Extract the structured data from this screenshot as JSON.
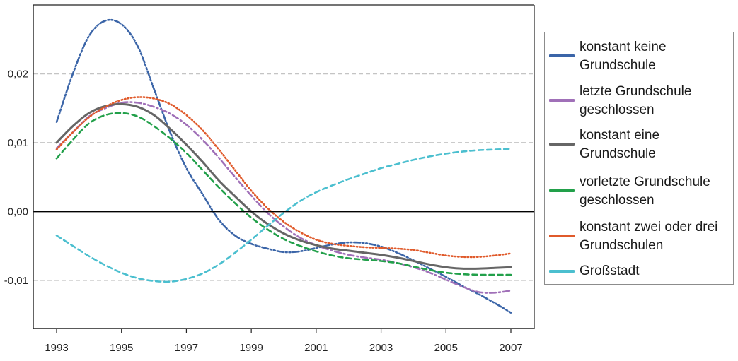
{
  "chart_data": {
    "type": "line",
    "title": "",
    "xlabel": "",
    "ylabel": "",
    "xlim": [
      1993,
      2007
    ],
    "ylim": [
      -0.017,
      0.03
    ],
    "x_ticks": [
      1993,
      1995,
      1997,
      1999,
      2001,
      2003,
      2005,
      2007
    ],
    "x_tick_labels": [
      "1993",
      "1995",
      "1997",
      "1999",
      "2001",
      "2003",
      "2005",
      "2007"
    ],
    "y_ticks": [
      -0.01,
      0.0,
      0.01,
      0.02
    ],
    "y_tick_labels": [
      "-0,01",
      "0,00",
      "0,01",
      "0,02"
    ],
    "grid": "horizontal dashed",
    "zero_line": true,
    "legend_position": "right",
    "series": [
      {
        "name": "konstant keine Grundschule",
        "color": "#3b65a8",
        "dash": "dashdotdot",
        "x": [
          1993,
          1993.5,
          1994,
          1994.5,
          1995,
          1995.5,
          1996,
          1996.5,
          1997,
          1997.5,
          1998,
          1998.5,
          1999,
          1999.5,
          2000,
          2000.5,
          2001,
          2001.5,
          2002,
          2002.5,
          2003,
          2003.5,
          2004,
          2004.5,
          2005,
          2005.5,
          2006,
          2006.5,
          2007
        ],
        "y": [
          0.013,
          0.02,
          0.0255,
          0.0277,
          0.0272,
          0.024,
          0.0178,
          0.0115,
          0.0063,
          0.0025,
          -0.0012,
          -0.0035,
          -0.0047,
          -0.0054,
          -0.0059,
          -0.0058,
          -0.0053,
          -0.0048,
          -0.0045,
          -0.0046,
          -0.0051,
          -0.006,
          -0.0071,
          -0.0083,
          -0.0095,
          -0.0108,
          -0.012,
          -0.0133,
          -0.0147
        ]
      },
      {
        "name": "letzte  Grundschule geschlossen",
        "color": "#a070b8",
        "dash": "dashdot",
        "x": [
          1993,
          1993.5,
          1994,
          1994.5,
          1995,
          1995.5,
          1996,
          1996.5,
          1997,
          1997.5,
          1998,
          1998.5,
          1999,
          1999.5,
          2000,
          2000.5,
          2001,
          2001.5,
          2002,
          2002.5,
          2003,
          2003.5,
          2004,
          2004.5,
          2005,
          2005.5,
          2006,
          2006.5,
          2007
        ],
        "y": [
          0.0092,
          0.0115,
          0.0138,
          0.015,
          0.0158,
          0.0158,
          0.0152,
          0.0142,
          0.0126,
          0.0104,
          0.0078,
          0.005,
          0.0023,
          -0.0002,
          -0.0022,
          -0.0038,
          -0.0049,
          -0.0057,
          -0.0063,
          -0.0067,
          -0.007,
          -0.0075,
          -0.0081,
          -0.0089,
          -0.0099,
          -0.0109,
          -0.0117,
          -0.0118,
          -0.0115
        ]
      },
      {
        "name": "konstant eine Grundschule",
        "color": "#666666",
        "dash": "solid",
        "x": [
          1993,
          1993.5,
          1994,
          1994.5,
          1995,
          1995.5,
          1996,
          1996.5,
          1997,
          1997.5,
          1998,
          1998.5,
          1999,
          1999.5,
          2000,
          2000.5,
          2001,
          2001.5,
          2002,
          2002.5,
          2003,
          2003.5,
          2004,
          2004.5,
          2005,
          2005.5,
          2006,
          2006.5,
          2007
        ],
        "y": [
          0.01,
          0.0124,
          0.0143,
          0.0153,
          0.0156,
          0.0152,
          0.014,
          0.012,
          0.0097,
          0.0072,
          0.0045,
          0.0022,
          0.0,
          -0.0018,
          -0.0032,
          -0.0042,
          -0.0049,
          -0.0054,
          -0.0057,
          -0.006,
          -0.0063,
          -0.0067,
          -0.0072,
          -0.0077,
          -0.0081,
          -0.0083,
          -0.0083,
          -0.0082,
          -0.0081
        ]
      },
      {
        "name": "vorletzte Grundschule geschlossen",
        "color": "#22a04a",
        "dash": "dashed",
        "x": [
          1993,
          1993.5,
          1994,
          1994.5,
          1995,
          1995.5,
          1996,
          1996.5,
          1997,
          1997.5,
          1998,
          1998.5,
          1999,
          1999.5,
          2000,
          2000.5,
          2001,
          2001.5,
          2002,
          2002.5,
          2003,
          2003.5,
          2004,
          2004.5,
          2005,
          2005.5,
          2006,
          2006.5,
          2007
        ],
        "y": [
          0.0077,
          0.0104,
          0.0128,
          0.014,
          0.0143,
          0.0138,
          0.0124,
          0.0106,
          0.0085,
          0.006,
          0.0035,
          0.0012,
          -0.0009,
          -0.0026,
          -0.004,
          -0.005,
          -0.0058,
          -0.0064,
          -0.0068,
          -0.007,
          -0.0072,
          -0.0075,
          -0.008,
          -0.0085,
          -0.0089,
          -0.0091,
          -0.0092,
          -0.0092,
          -0.0092
        ]
      },
      {
        "name": "konstant zwei oder drei Grundschulen",
        "color": "#e05a2b",
        "dash": "dotted",
        "x": [
          1993,
          1993.5,
          1994,
          1994.5,
          1995,
          1995.5,
          1996,
          1996.5,
          1997,
          1997.5,
          1998,
          1998.5,
          1999,
          1999.5,
          2000,
          2000.5,
          2001,
          2001.5,
          2002,
          2002.5,
          2003,
          2003.5,
          2004,
          2004.5,
          2005,
          2005.5,
          2006,
          2006.5,
          2007
        ],
        "y": [
          0.009,
          0.0115,
          0.0137,
          0.0152,
          0.0162,
          0.0166,
          0.0164,
          0.0156,
          0.014,
          0.0118,
          0.009,
          0.006,
          0.003,
          0.0005,
          -0.0015,
          -0.003,
          -0.0041,
          -0.0047,
          -0.005,
          -0.0052,
          -0.0053,
          -0.0054,
          -0.0056,
          -0.006,
          -0.0064,
          -0.0066,
          -0.0066,
          -0.0064,
          -0.0061
        ]
      },
      {
        "name": "Großstadt",
        "color": "#4bbfcf",
        "dash": "dashed",
        "x": [
          1993,
          1993.5,
          1994,
          1994.5,
          1995,
          1995.5,
          1996,
          1996.5,
          1997,
          1997.5,
          1998,
          1998.5,
          1999,
          1999.5,
          2000,
          2000.5,
          2001,
          2001.5,
          2002,
          2002.5,
          2003,
          2003.5,
          2004,
          2004.5,
          2005,
          2005.5,
          2006,
          2006.5,
          2007
        ],
        "y": [
          -0.0035,
          -0.005,
          -0.0065,
          -0.0078,
          -0.0089,
          -0.0097,
          -0.0101,
          -0.0102,
          -0.0098,
          -0.009,
          -0.0077,
          -0.006,
          -0.0041,
          -0.0021,
          -0.0002,
          0.0015,
          0.0028,
          0.0038,
          0.0047,
          0.0055,
          0.0063,
          0.0069,
          0.0075,
          0.008,
          0.0084,
          0.0087,
          0.0089,
          0.009,
          0.0091
        ]
      }
    ]
  }
}
